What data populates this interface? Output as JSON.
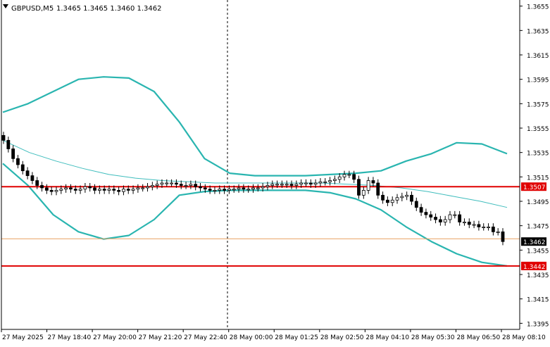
{
  "header": {
    "symbol_label": "GBPUSD,M5",
    "ohlc": "1.3465 1.3465 1.3460 1.3462"
  },
  "colors": {
    "background": "#ffffff",
    "grid": "#c8c8c8",
    "candle": "#000000",
    "bollinger": "#2ab5b0",
    "ma": "#3fbdbd",
    "level_line": "#e00000",
    "level_tag_bg": "#e00000",
    "level_tag_text": "#ffffff",
    "bid_line": "#e8a060",
    "price_tag_bg": "#000000",
    "price_tag_text": "#ffffff"
  },
  "price_axis": {
    "ticks": [
      "1.3655",
      "1.3635",
      "1.3615",
      "1.3595",
      "1.3575",
      "1.3555",
      "1.3535",
      "1.3515",
      "1.3495",
      "1.3475",
      "1.3455",
      "1.3435",
      "1.3415",
      "1.3395"
    ]
  },
  "time_axis": {
    "ticks": [
      "27 May 2025",
      "27 May 18:40",
      "27 May 20:00",
      "27 May 21:20",
      "27 May 22:40",
      "28 May 00:00",
      "28 May 01:25",
      "28 May 02:50",
      "28 May 04:10",
      "28 May 05:30",
      "28 May 06:50",
      "28 May 08:10"
    ]
  },
  "levels": [
    {
      "label": "1.3507"
    },
    {
      "label": "1.3442"
    }
  ],
  "current_price": {
    "label": "1.3462"
  },
  "chart_data": {
    "type": "candlestick",
    "title": "GBPUSD,M5",
    "ylim": [
      1.339,
      1.366
    ],
    "series": {
      "close": [
        1.3545,
        1.3538,
        1.353,
        1.3525,
        1.352,
        1.3516,
        1.3512,
        1.3508,
        1.3506,
        1.3504,
        1.3503,
        1.3504,
        1.3505,
        1.3506,
        1.3505,
        1.3504,
        1.3505,
        1.3507,
        1.3506,
        1.3504,
        1.3505,
        1.3504,
        1.3505,
        1.3504,
        1.3503,
        1.3505,
        1.3504,
        1.3505,
        1.3506,
        1.3506,
        1.3507,
        1.3508,
        1.3509,
        1.351,
        1.351,
        1.351,
        1.3509,
        1.3508,
        1.3508,
        1.3509,
        1.3507,
        1.3506,
        1.3505,
        1.3504,
        1.3504,
        1.3505,
        1.3504,
        1.3505,
        1.3505,
        1.3506,
        1.3505,
        1.3505,
        1.3506,
        1.3506,
        1.3507,
        1.3508,
        1.3509,
        1.3509,
        1.3509,
        1.3509,
        1.3508,
        1.3509,
        1.351,
        1.351,
        1.3509,
        1.351,
        1.3511,
        1.3511,
        1.3512,
        1.3513,
        1.3515,
        1.3517,
        1.3517,
        1.3513,
        1.35,
        1.3504,
        1.3512,
        1.351,
        1.35,
        1.3496,
        1.3494,
        1.3496,
        1.3498,
        1.3499,
        1.35,
        1.3495,
        1.349,
        1.3486,
        1.3484,
        1.3482,
        1.348,
        1.3478,
        1.348,
        1.3484,
        1.3484,
        1.3478,
        1.3478,
        1.3476,
        1.3476,
        1.3474,
        1.3474,
        1.3474,
        1.347,
        1.347,
        1.3462
      ]
    },
    "bollinger_upper": [
      1.3568,
      1.3575,
      1.3585,
      1.3595,
      1.3597,
      1.3596,
      1.3585,
      1.356,
      1.353,
      1.3518,
      1.3516,
      1.3516,
      1.3516,
      1.3517,
      1.3518,
      1.352,
      1.3528,
      1.3534,
      1.3543,
      1.3542,
      1.3534
    ],
    "bollinger_lower": [
      1.3526,
      1.3508,
      1.3484,
      1.347,
      1.3464,
      1.3467,
      1.348,
      1.35,
      1.3503,
      1.3504,
      1.3504,
      1.3504,
      1.3504,
      1.3502,
      1.3497,
      1.3488,
      1.3474,
      1.3462,
      1.3452,
      1.3445,
      1.3442
    ],
    "ma": [
      1.3545,
      1.3535,
      1.3528,
      1.3522,
      1.3517,
      1.3514,
      1.3512,
      1.3511,
      1.351,
      1.351,
      1.351,
      1.351,
      1.351,
      1.3509,
      1.3508,
      1.3506,
      1.3503,
      1.3499,
      1.3495,
      1.349
    ],
    "horizontal_levels": [
      1.3507,
      1.3442
    ],
    "current_price": 1.3462,
    "xlabel": "",
    "ylabel": ""
  }
}
